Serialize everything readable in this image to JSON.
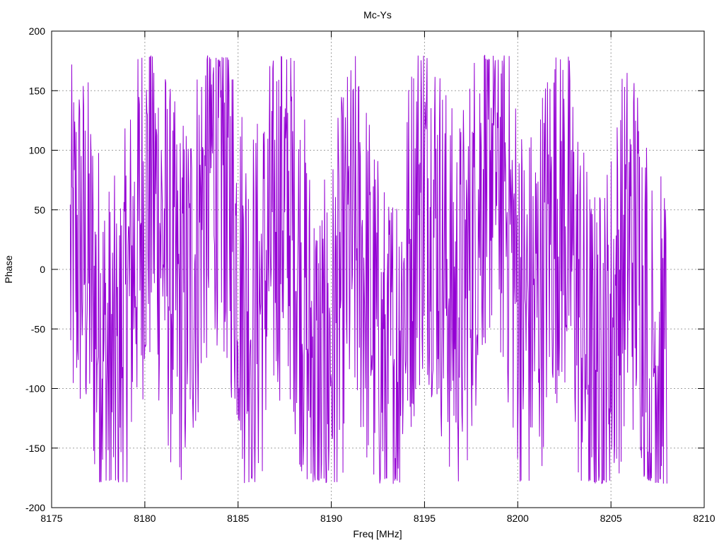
{
  "chart_data": {
    "type": "line",
    "title": "Mc-Ys",
    "xlabel": "Freq [MHz]",
    "ylabel": "Phase",
    "xlim": [
      8175,
      8210
    ],
    "ylim": [
      -200,
      200
    ],
    "x_ticks": [
      8175,
      8180,
      8185,
      8190,
      8195,
      8200,
      8205,
      8210
    ],
    "y_ticks": [
      -200,
      -150,
      -100,
      -50,
      0,
      50,
      100,
      150,
      200
    ],
    "grid": true,
    "line_color": "#9400d3",
    "series": [
      {
        "x_start": 8176.0,
        "x_end": 8208.0,
        "points": 1200,
        "y_range": [
          -180,
          180
        ]
      }
    ]
  }
}
